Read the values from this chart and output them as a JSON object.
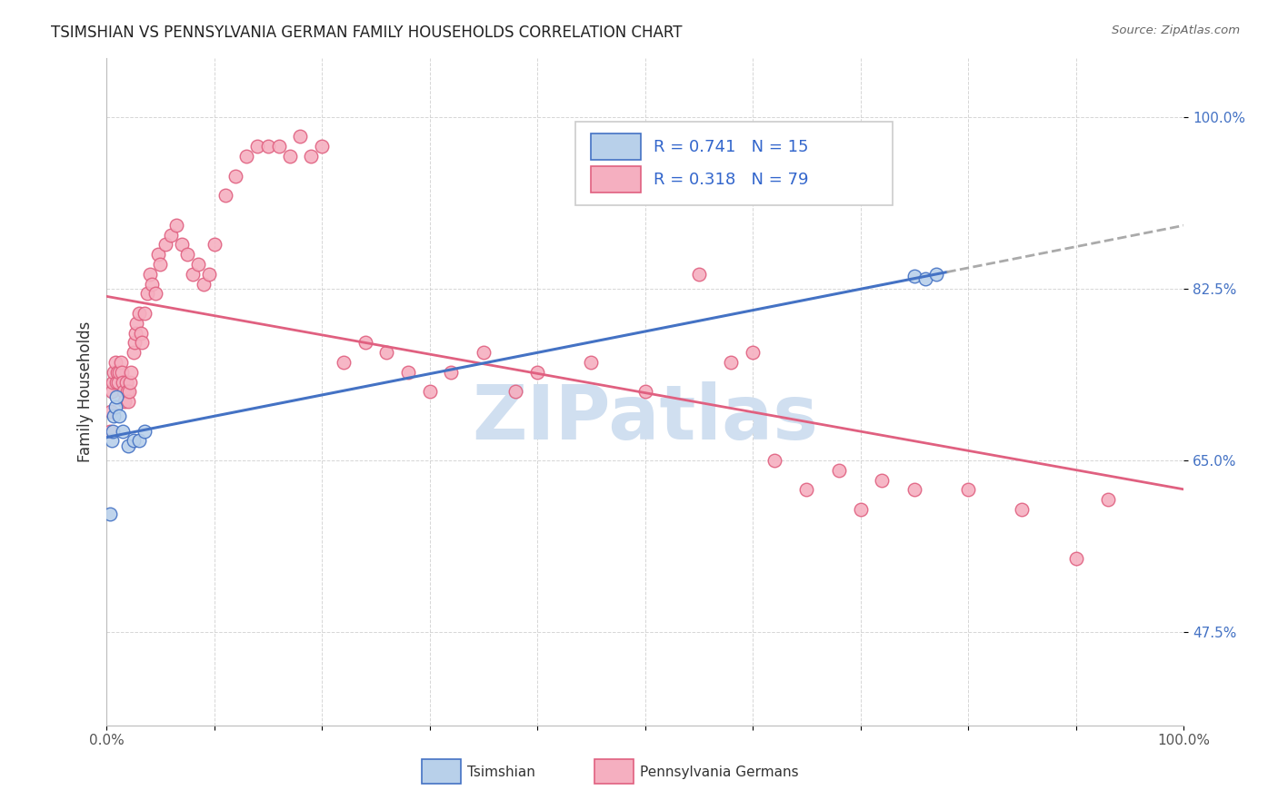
{
  "title": "TSIMSHIAN VS PENNSYLVANIA GERMAN FAMILY HOUSEHOLDS CORRELATION CHART",
  "source": "Source: ZipAtlas.com",
  "ylabel": "Family Households",
  "xlim": [
    0.0,
    1.0
  ],
  "ylim": [
    0.38,
    1.06
  ],
  "yticks": [
    0.475,
    0.65,
    0.825,
    1.0
  ],
  "ytick_labels": [
    "47.5%",
    "65.0%",
    "82.5%",
    "100.0%"
  ],
  "xticks": [
    0.0,
    0.1,
    0.2,
    0.3,
    0.4,
    0.5,
    0.6,
    0.7,
    0.8,
    0.9,
    1.0
  ],
  "xtick_labels": [
    "0.0%",
    "",
    "",
    "",
    "",
    "",
    "",
    "",
    "",
    "",
    "100.0%"
  ],
  "tsimshian_color": "#b8d0ea",
  "pa_german_color": "#f5afc0",
  "tsimshian_line_color": "#4472c4",
  "pa_german_line_color": "#e06080",
  "dashed_line_color": "#aaaaaa",
  "R_tsimshian": 0.741,
  "N_tsimshian": 15,
  "R_pa_german": 0.318,
  "N_pa_german": 79,
  "legend_color": "#3366cc",
  "watermark": "ZIPatlas",
  "watermark_color": "#d0dff0",
  "background_color": "#ffffff",
  "tsimshian_x": [
    0.003,
    0.005,
    0.006,
    0.007,
    0.008,
    0.009,
    0.012,
    0.015,
    0.02,
    0.025,
    0.03,
    0.035,
    0.75,
    0.76,
    0.77
  ],
  "tsimshian_y": [
    0.595,
    0.67,
    0.68,
    0.695,
    0.705,
    0.715,
    0.695,
    0.68,
    0.665,
    0.67,
    0.67,
    0.68,
    0.838,
    0.835,
    0.84
  ],
  "pa_german_x": [
    0.003,
    0.004,
    0.005,
    0.006,
    0.007,
    0.008,
    0.009,
    0.01,
    0.011,
    0.012,
    0.013,
    0.014,
    0.015,
    0.016,
    0.017,
    0.018,
    0.019,
    0.02,
    0.021,
    0.022,
    0.023,
    0.025,
    0.026,
    0.027,
    0.028,
    0.03,
    0.032,
    0.033,
    0.035,
    0.038,
    0.04,
    0.042,
    0.045,
    0.048,
    0.05,
    0.055,
    0.06,
    0.065,
    0.07,
    0.075,
    0.08,
    0.085,
    0.09,
    0.095,
    0.1,
    0.11,
    0.12,
    0.13,
    0.14,
    0.15,
    0.16,
    0.17,
    0.18,
    0.19,
    0.2,
    0.22,
    0.24,
    0.26,
    0.28,
    0.3,
    0.32,
    0.35,
    0.38,
    0.4,
    0.45,
    0.5,
    0.55,
    0.58,
    0.6,
    0.62,
    0.65,
    0.68,
    0.7,
    0.72,
    0.75,
    0.8,
    0.85,
    0.9,
    0.93
  ],
  "pa_german_y": [
    0.68,
    0.7,
    0.72,
    0.73,
    0.74,
    0.75,
    0.73,
    0.74,
    0.73,
    0.74,
    0.75,
    0.74,
    0.73,
    0.72,
    0.71,
    0.73,
    0.72,
    0.71,
    0.72,
    0.73,
    0.74,
    0.76,
    0.77,
    0.78,
    0.79,
    0.8,
    0.78,
    0.77,
    0.8,
    0.82,
    0.84,
    0.83,
    0.82,
    0.86,
    0.85,
    0.87,
    0.88,
    0.89,
    0.87,
    0.86,
    0.84,
    0.85,
    0.83,
    0.84,
    0.87,
    0.92,
    0.94,
    0.96,
    0.97,
    0.97,
    0.97,
    0.96,
    0.98,
    0.96,
    0.97,
    0.75,
    0.77,
    0.76,
    0.74,
    0.72,
    0.74,
    0.76,
    0.72,
    0.74,
    0.75,
    0.72,
    0.84,
    0.75,
    0.76,
    0.65,
    0.62,
    0.64,
    0.6,
    0.63,
    0.62,
    0.62,
    0.6,
    0.55,
    0.61
  ]
}
